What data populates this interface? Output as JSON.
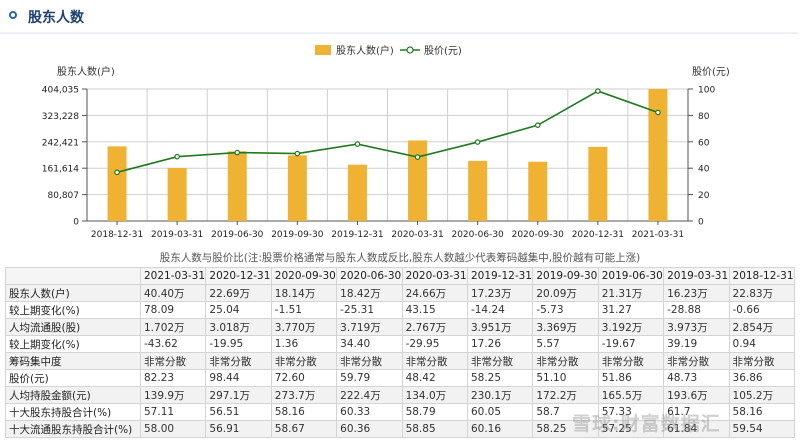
{
  "header": {
    "title": "股东人数"
  },
  "caption": "股东人数与股价比(注:股票价格通常与股东人数成反比,股东人数越少代表筹码越集中,股价越有可能上涨)",
  "watermark": "雪球:财富数据汇",
  "colors": {
    "bar": "#f0b232",
    "line": "#1f7a1f",
    "grid": "#cfcfcf",
    "accent": "#2a64b0"
  },
  "chart_data": {
    "type": "bar",
    "categories": [
      "2018-12-31",
      "2019-03-31",
      "2019-06-30",
      "2019-09-30",
      "2019-12-31",
      "2020-03-31",
      "2020-06-30",
      "2020-09-30",
      "2020-12-31",
      "2021-03-31"
    ],
    "series": [
      {
        "name": "股东人数(户)",
        "type": "bar",
        "axis": "left",
        "values": [
          228300,
          162300,
          213100,
          200900,
          172300,
          246600,
          184200,
          181400,
          226900,
          404000
        ]
      },
      {
        "name": "股价(元)",
        "type": "line",
        "axis": "right",
        "values": [
          36.86,
          48.73,
          51.86,
          51.1,
          58.25,
          48.42,
          59.79,
          72.6,
          98.44,
          82.23
        ]
      }
    ],
    "ylabel_left": "股东人数(户)",
    "ylabel_right": "股价(元)",
    "y_left_ticks": [
      "0",
      "80,807",
      "161,614",
      "242,421",
      "323,228",
      "404,035"
    ],
    "y_left_lim": [
      0,
      404035
    ],
    "y_right_ticks": [
      "0",
      "20",
      "40",
      "60",
      "80",
      "100"
    ],
    "y_right_lim": [
      0,
      100
    ],
    "legend_position": "top-center",
    "grid": true
  },
  "table": {
    "columns": [
      "2021-03-31",
      "2020-12-31",
      "2020-09-30",
      "2020-06-30",
      "2020-03-31",
      "2019-12-31",
      "2019-09-30",
      "2019-06-30",
      "2019-03-31",
      "2018-12-31"
    ],
    "rows": [
      {
        "label": "股东人数(户)",
        "values": [
          "40.40万",
          "22.69万",
          "18.14万",
          "18.42万",
          "24.66万",
          "17.23万",
          "20.09万",
          "21.31万",
          "16.23万",
          "22.83万"
        ]
      },
      {
        "label": "较上期变化(%)",
        "values": [
          "78.09",
          "25.04",
          "-1.51",
          "-25.31",
          "43.15",
          "-14.24",
          "-5.73",
          "31.27",
          "-28.88",
          "-0.66"
        ]
      },
      {
        "label": "人均流通股(股)",
        "values": [
          "1.702万",
          "3.018万",
          "3.770万",
          "3.719万",
          "2.767万",
          "3.951万",
          "3.369万",
          "3.192万",
          "3.973万",
          "2.854万"
        ]
      },
      {
        "label": "较上期变化(%)",
        "values": [
          "-43.62",
          "-19.95",
          "1.36",
          "34.40",
          "-29.95",
          "17.26",
          "5.57",
          "-19.67",
          "39.19",
          "0.94"
        ]
      },
      {
        "label": "筹码集中度",
        "values": [
          "非常分散",
          "非常分散",
          "非常分散",
          "非常分散",
          "非常分散",
          "非常分散",
          "非常分散",
          "非常分散",
          "非常分散",
          "非常分散"
        ]
      },
      {
        "label": "股价(元)",
        "values": [
          "82.23",
          "98.44",
          "72.60",
          "59.79",
          "48.42",
          "58.25",
          "51.10",
          "51.86",
          "48.73",
          "36.86"
        ]
      },
      {
        "label": "人均持股金额(元)",
        "values": [
          "139.9万",
          "297.1万",
          "273.7万",
          "222.4万",
          "134.0万",
          "230.1万",
          "172.2万",
          "165.5万",
          "193.6万",
          "105.2万"
        ]
      },
      {
        "label": "十大股东持股合计(%)",
        "values": [
          "57.11",
          "56.51",
          "58.16",
          "60.33",
          "58.79",
          "60.05",
          "58.7",
          "57.33",
          "61.7",
          "58.16"
        ]
      },
      {
        "label": "十大流通股东持股合计(%)",
        "values": [
          "58.00",
          "56.91",
          "58.67",
          "60.36",
          "58.85",
          "60.16",
          "58.25",
          "57.25",
          "61.84",
          "59.54"
        ]
      }
    ]
  }
}
